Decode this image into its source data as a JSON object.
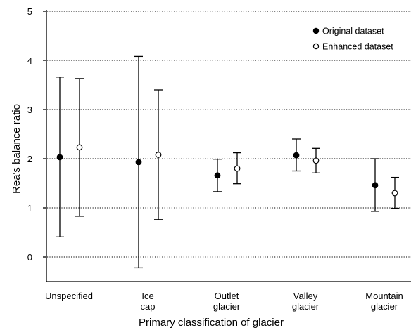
{
  "chart_data": {
    "type": "scatter",
    "subtype": "point-with-error-bars",
    "xlabel": "Primary classification of glacier",
    "ylabel": "Rea's balance ratio",
    "ylim": [
      -0.5,
      5
    ],
    "yticks": [
      0,
      1,
      2,
      3,
      4,
      5
    ],
    "grid": "horizontal dotted",
    "legend_position": "top-right",
    "categories": [
      [
        "Unspecified"
      ],
      [
        "Ice",
        "cap"
      ],
      [
        "Outlet",
        "glacier"
      ],
      [
        "Valley",
        "glacier"
      ],
      [
        "Mountain",
        "glacier"
      ]
    ],
    "series": [
      {
        "name": "Original dataset",
        "marker": "filled-circle",
        "values": [
          2.03,
          1.93,
          1.66,
          2.07,
          1.46
        ],
        "lower": [
          0.41,
          -0.22,
          1.33,
          1.75,
          0.93
        ],
        "upper": [
          3.66,
          4.08,
          1.99,
          2.4,
          2.0
        ]
      },
      {
        "name": "Enhanced dataset",
        "marker": "open-circle",
        "values": [
          2.23,
          2.08,
          1.8,
          1.96,
          1.3
        ],
        "lower": [
          0.83,
          0.76,
          1.49,
          1.71,
          0.99
        ],
        "upper": [
          3.63,
          3.4,
          2.12,
          2.21,
          1.62
        ]
      }
    ]
  }
}
